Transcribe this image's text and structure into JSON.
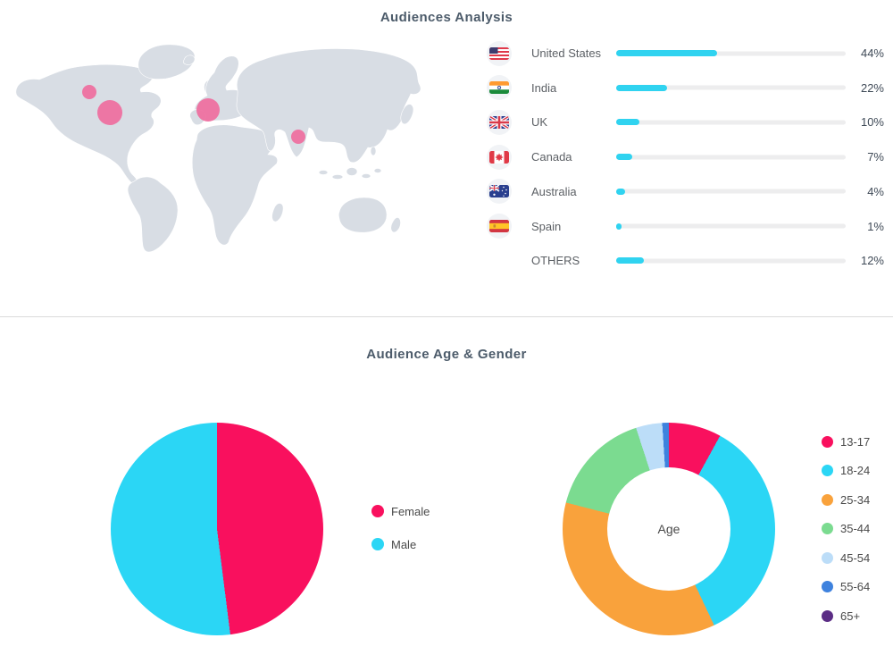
{
  "sections": {
    "audiences": {
      "title": "Audiences Analysis"
    },
    "age_gender": {
      "title": "Audience Age & Gender"
    }
  },
  "colors": {
    "bar_fill": "#30D3F0",
    "bar_track": "#EDEDEE",
    "map_land": "#D8DDE4",
    "map_marker": "#EF6D9E",
    "divider": "#DBDBDB",
    "title_text": "#4C5B6A",
    "label_text": "#5C6065",
    "value_text": "#3F4A57"
  },
  "chart_data": [
    {
      "id": "audience-countries",
      "type": "bar",
      "orientation": "horizontal",
      "title": "Audiences Analysis",
      "categories": [
        "United States",
        "India",
        "UK",
        "Canada",
        "Australia",
        "Spain",
        "OTHERS"
      ],
      "values": [
        44,
        22,
        10,
        7,
        4,
        1,
        12
      ],
      "value_labels": [
        "44%",
        "22%",
        "10%",
        "7%",
        "4%",
        "1%",
        "12%"
      ],
      "flags": [
        "us",
        "in",
        "gb",
        "ca",
        "au",
        "es",
        null
      ],
      "xlim": [
        0,
        100
      ],
      "grid": false,
      "bar_color": "#30D3F0",
      "track_color": "#EDEDEE"
    },
    {
      "id": "world-map-markers",
      "type": "scatter",
      "note": "pink audience bubbles over world map, coords in 500x275 map units",
      "marker_color": "#EF6D9E",
      "points": [
        {
          "label": "canada",
          "x": 90,
          "y": 58,
          "r": 8
        },
        {
          "label": "united-states",
          "x": 113,
          "y": 81,
          "r": 14
        },
        {
          "label": "western-europe",
          "x": 223,
          "y": 78,
          "r": 13
        },
        {
          "label": "india",
          "x": 324,
          "y": 108,
          "r": 8
        }
      ]
    },
    {
      "id": "gender-pie",
      "type": "pie",
      "categories": [
        "Female",
        "Male"
      ],
      "values": [
        48,
        52
      ],
      "colors": [
        "#F9105E",
        "#2BD6F5"
      ],
      "legend_position": "right",
      "start_angle_deg": 0
    },
    {
      "id": "age-donut",
      "type": "pie",
      "subtype": "donut",
      "center_label": "Age",
      "categories": [
        "13-17",
        "18-24",
        "25-34",
        "35-44",
        "45-54",
        "55-64",
        "65+"
      ],
      "values": [
        8,
        35,
        36,
        16,
        4,
        1,
        0
      ],
      "colors": [
        "#F9105E",
        "#2BD6F5",
        "#F9A23C",
        "#7BDB90",
        "#BCDDF8",
        "#3E82DE",
        "#5B2D85"
      ],
      "legend_position": "right",
      "start_angle_deg": 0
    }
  ]
}
